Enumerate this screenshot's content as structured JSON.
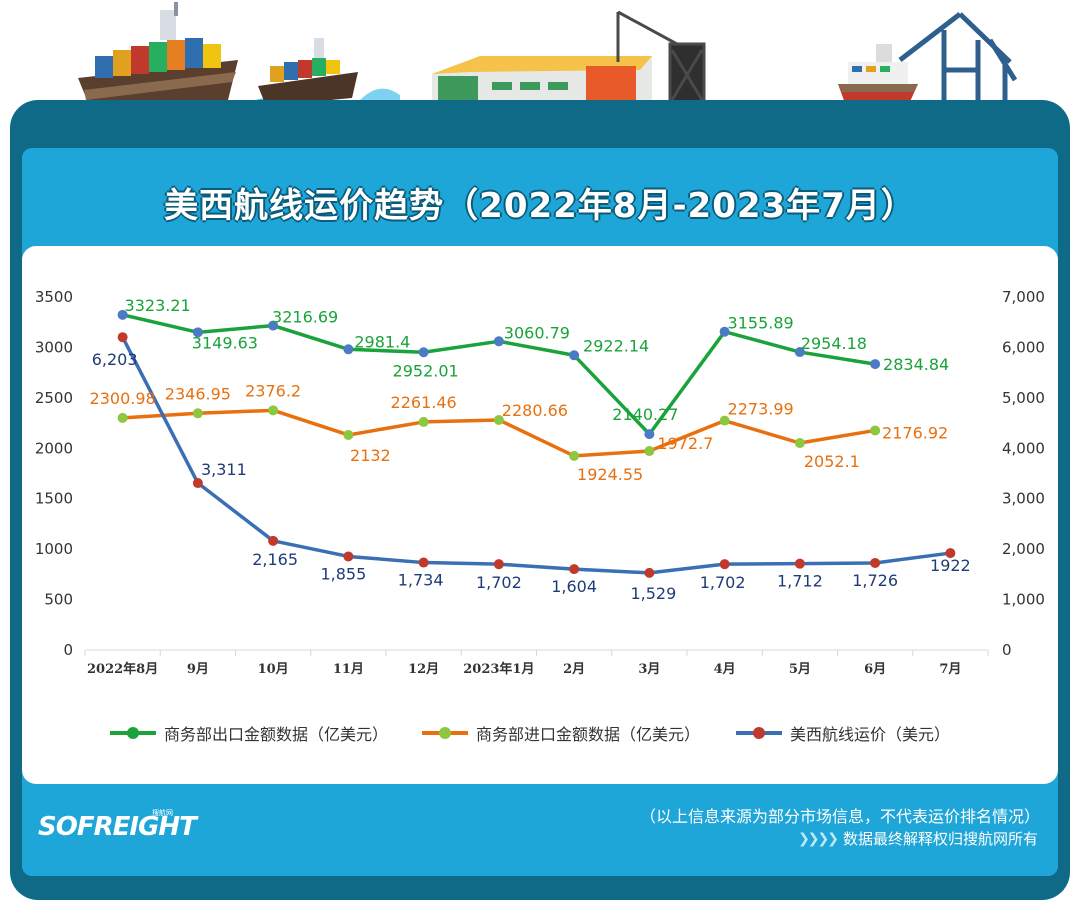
{
  "title": "美西航线运价趋势（2022年8月-2023年7月）",
  "colors": {
    "export": "#1aa33a",
    "import": "#e8700f",
    "freight": "#3a6fb5",
    "freight_label": "#1f3c78",
    "export_marker": "#4a7bc4",
    "import_marker": "#8dc63f",
    "freight_marker": "#c0392b",
    "frame": "#0e6a86",
    "band": "#1fa6d8"
  },
  "chart_data": {
    "type": "line",
    "categories": [
      "2022年8月",
      "9月",
      "10月",
      "11月",
      "12月",
      "2023年1月",
      "2月",
      "3月",
      "4月",
      "5月",
      "6月",
      "7月"
    ],
    "y_left": {
      "min": 0,
      "max": 3500,
      "ticks": [
        "0",
        "500",
        "1000",
        "1500",
        "2000",
        "2500",
        "3000",
        "3500"
      ]
    },
    "y_right": {
      "min": 0,
      "max": 7000,
      "ticks": [
        "0",
        "1,000",
        "2,000",
        "3,000",
        "4,000",
        "5,000",
        "6,000",
        "7,000"
      ]
    },
    "series": [
      {
        "name": "商务部出口金额数据（亿美元）",
        "axis": "left",
        "values": [
          3323.21,
          3149.63,
          3216.69,
          2981.4,
          2952.01,
          3060.79,
          2922.14,
          2140.27,
          3155.89,
          2954.18,
          2834.84,
          null
        ],
        "labels": [
          "3323.21",
          "3149.63",
          "3216.69",
          "2981.4",
          "2952.01",
          "3060.79",
          "2922.14",
          "2140.27",
          "3155.89",
          "2954.18",
          "2834.84",
          ""
        ]
      },
      {
        "name": "商务部进口金额数据（亿美元）",
        "axis": "left",
        "values": [
          2300.98,
          2346.95,
          2376.2,
          2132,
          2261.46,
          2280.66,
          1924.55,
          1972.7,
          2273.99,
          2052.1,
          2176.92,
          null
        ],
        "labels": [
          "2300.98",
          "2346.95",
          "2376.2",
          "2132",
          "2261.46",
          "2280.66",
          "1924.55",
          "1972.7",
          "2273.99",
          "2052.1",
          "2176.92",
          ""
        ]
      },
      {
        "name": "美西航线运价（美元）",
        "axis": "right",
        "values": [
          6203,
          3311,
          2165,
          1855,
          1734,
          1702,
          1604,
          1529,
          1702,
          1712,
          1726,
          1922
        ],
        "labels": [
          "6,203",
          "3,311",
          "2,165",
          "1,855",
          "1,734",
          "1,702",
          "1,604",
          "1,529",
          "1,702",
          "1,712",
          "1,726",
          "1922"
        ]
      }
    ]
  },
  "legend": {
    "export": "商务部出口金额数据（亿美元）",
    "import": "商务部进口金额数据（亿美元）",
    "freight": "美西航线运价（美元）"
  },
  "footer": {
    "logo": "SOFREIGHT",
    "logo_cn": "搜航网",
    "source_note": "（以上信息来源为部分市场信息，不代表运价排名情况）",
    "rights": "数据最终解释权归搜航网所有"
  }
}
